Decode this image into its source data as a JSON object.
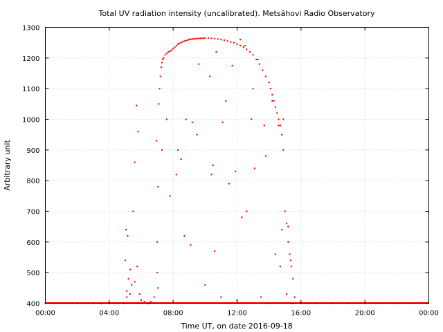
{
  "chart_data": {
    "type": "scatter",
    "title": "Total UV radiation intensity (uncalibrated). Metsähovi Radio Observatory",
    "xlabel": "Time UT, on date 2016-09-18",
    "ylabel": "Arbitrary unit",
    "xlim": [
      0,
      24
    ],
    "ylim": [
      400,
      1300
    ],
    "x_ticks": [
      0,
      4,
      8,
      12,
      16,
      20,
      24
    ],
    "x_tick_labels": [
      "00:00",
      "04:00",
      "08:00",
      "12:00",
      "16:00",
      "20:00",
      "00:00"
    ],
    "y_ticks": [
      400,
      500,
      600,
      700,
      800,
      900,
      1000,
      1100,
      1200,
      1300
    ],
    "y_tick_labels": [
      "400",
      "500",
      "600",
      "700",
      "800",
      "900",
      "1000",
      "1100",
      "1200",
      "1300"
    ],
    "grid": true,
    "marker_color": "#ff0000",
    "series": [
      {
        "name": "",
        "x": [
          0.0,
          0.5,
          1.0,
          1.5,
          2.0,
          2.5,
          3.0,
          3.5,
          4.0,
          4.5,
          4.9,
          5.0,
          5.05,
          5.1,
          5.15,
          5.2,
          5.3,
          5.4,
          5.5,
          5.6,
          5.7,
          5.75,
          5.8,
          5.9,
          6.0,
          6.2,
          6.4,
          6.6,
          6.8,
          6.95,
          7.0,
          7.05,
          7.1,
          7.15,
          7.2,
          7.25,
          7.3,
          7.35,
          7.4,
          7.5,
          7.6,
          7.7,
          7.8,
          7.9,
          8.0,
          8.1,
          8.2,
          8.3,
          8.4,
          8.5,
          8.6,
          8.7,
          8.8,
          8.9,
          9.0,
          9.1,
          9.2,
          9.3,
          9.4,
          9.5,
          9.6,
          9.7,
          9.8,
          9.9,
          10.0,
          10.2,
          10.4,
          10.6,
          10.8,
          11.0,
          11.2,
          11.4,
          11.6,
          11.8,
          12.0,
          12.2,
          12.4,
          12.6,
          12.8,
          13.0,
          13.2,
          13.4,
          13.6,
          13.8,
          14.0,
          14.1,
          14.2,
          14.3,
          14.4,
          14.5,
          14.6,
          14.7,
          14.8,
          14.9,
          15.0,
          15.1,
          15.2,
          15.3,
          15.4,
          15.5,
          15.6,
          16.0,
          16.5,
          17.0,
          18.0,
          19.0,
          20.0,
          21.0,
          22.0,
          23.0,
          23.9,
          5.8,
          5.1,
          6.0,
          7.05,
          7.3,
          8.2,
          8.8,
          9.2,
          10.3,
          10.7,
          11.3,
          11.7,
          12.2,
          12.5,
          13.0,
          13.3,
          13.8,
          14.2,
          14.6,
          14.9,
          15.2,
          15.35,
          8.7,
          9.1,
          10.0,
          10.5,
          11.0,
          12.0,
          12.6,
          13.5,
          14.0,
          14.8,
          15.4,
          7.0,
          7.6,
          8.3,
          9.6,
          10.4,
          11.1,
          11.9,
          12.9,
          13.7,
          14.4,
          15.1,
          5.3,
          5.6,
          6.5,
          7.8,
          8.5,
          9.5,
          10.6,
          11.5,
          12.3,
          13.1,
          14.7,
          15.5
        ],
        "y": [
          400,
          400,
          400,
          400,
          400,
          400,
          400,
          400,
          400,
          400,
          400,
          540,
          640,
          420,
          620,
          480,
          510,
          460,
          700,
          860,
          1045,
          520,
          400,
          430,
          410,
          405,
          400,
          405,
          420,
          930,
          600,
          780,
          1050,
          1100,
          1140,
          1170,
          1185,
          1195,
          1200,
          1210,
          1215,
          1220,
          1222,
          1225,
          1230,
          1235,
          1240,
          1245,
          1248,
          1250,
          1253,
          1255,
          1257,
          1258,
          1260,
          1261,
          1262,
          1262,
          1263,
          1263,
          1264,
          1264,
          1264,
          1264,
          1265,
          1265,
          1264,
          1263,
          1262,
          1260,
          1258,
          1255,
          1252,
          1250,
          1245,
          1240,
          1235,
          1228,
          1220,
          1210,
          1195,
          1180,
          1160,
          1140,
          1120,
          1100,
          1080,
          1060,
          1040,
          1020,
          1000,
          980,
          950,
          900,
          700,
          660,
          600,
          560,
          520,
          480,
          420,
          400,
          400,
          400,
          400,
          400,
          400,
          400,
          400,
          400,
          400,
          960,
          440,
          410,
          450,
          900,
          820,
          1000,
          990,
          1140,
          1220,
          1060,
          1175,
          1260,
          1240,
          1100,
          1195,
          880,
          1060,
          980,
          1000,
          650,
          540,
          620,
          590,
          460,
          850,
          420,
          410,
          700,
          420,
          400,
          640,
          400,
          500,
          1000,
          900,
          1180,
          820,
          990,
          830,
          1000,
          980,
          560,
          430,
          430,
          470,
          400,
          750,
          870,
          950,
          570,
          790,
          680,
          840,
          520,
          400
        ]
      }
    ]
  }
}
